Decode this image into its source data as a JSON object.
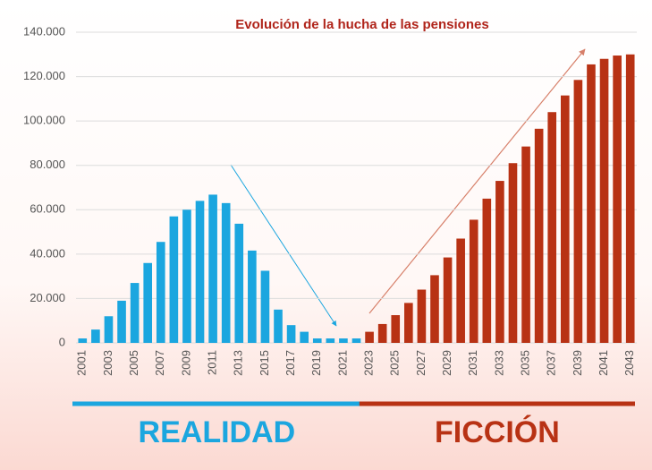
{
  "chart_data": {
    "type": "bar",
    "title": "Evolución de la hucha de las pensiones",
    "categories": [
      "2001",
      null,
      "2003",
      null,
      "2005",
      null,
      "2007",
      null,
      "2009",
      null,
      "2011",
      null,
      "2013",
      null,
      "2015",
      null,
      "2017",
      null,
      "2019",
      null,
      "2021",
      null,
      "2023",
      null,
      "2025",
      null,
      "2027",
      null,
      "2029",
      null,
      "2031",
      null,
      "2033",
      null,
      "2035",
      null,
      "2037",
      null,
      "2039",
      null,
      "2041",
      null,
      "2043"
    ],
    "series": [
      {
        "name": "REALIDAD",
        "color": "#1ba6df",
        "values": [
          2000,
          6000,
          12000,
          19000,
          27000,
          36000,
          45500,
          57000,
          60000,
          64000,
          66800,
          63000,
          53700,
          41600,
          32500,
          15000,
          8000,
          5000,
          2000,
          2000,
          2000,
          2000,
          null,
          null,
          null,
          null,
          null,
          null,
          null,
          null,
          null,
          null,
          null,
          null,
          null,
          null,
          null,
          null,
          null,
          null,
          null,
          null,
          null
        ]
      },
      {
        "name": "FICCIÓN",
        "color": "#b83214",
        "values": [
          null,
          null,
          null,
          null,
          null,
          null,
          null,
          null,
          null,
          null,
          null,
          null,
          null,
          null,
          null,
          null,
          null,
          null,
          null,
          null,
          null,
          null,
          5000,
          8500,
          12500,
          18000,
          24000,
          30500,
          38500,
          47000,
          55500,
          65000,
          73000,
          81000,
          88500,
          96500,
          104000,
          111500,
          118500,
          125500,
          128000,
          129500,
          130000
        ]
      }
    ],
    "ylim": [
      0,
      140000
    ],
    "yticks": [
      0,
      {
        "value": 20000,
        "label": "20.000"
      },
      {
        "value": 40000,
        "label": "40.000"
      },
      {
        "value": 60000,
        "label": "60.000"
      },
      {
        "value": 80000,
        "label": "80.000"
      },
      {
        "value": 100000,
        "label": "100.000"
      },
      {
        "value": 120000,
        "label": "120.000"
      },
      {
        "value": 140000,
        "label": "140.000"
      }
    ],
    "grid": true
  }
}
